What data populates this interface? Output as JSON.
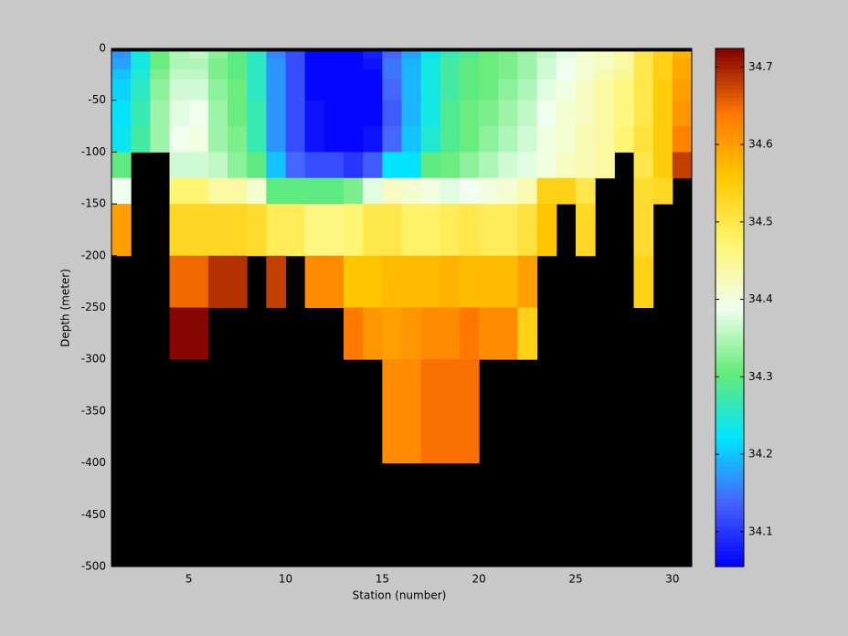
{
  "chart_data": {
    "type": "heatmap",
    "x_label": "Station (number)",
    "y_label": "Depth (meter)",
    "x_edges": [
      1,
      2,
      3,
      4,
      5,
      6,
      7,
      8,
      9,
      10,
      11,
      12,
      13,
      14,
      15,
      16,
      17,
      18,
      19,
      20,
      21,
      22,
      23,
      24,
      25,
      26,
      27,
      28,
      29,
      30,
      31
    ],
    "y_edges": [
      -3,
      -10,
      -20,
      -30,
      -50,
      -75,
      -100,
      -125,
      -150,
      -200,
      -250,
      -300,
      -400,
      -500
    ],
    "values": [
      [
        34.17,
        34.24,
        34.31,
        34.35,
        34.36,
        34.33,
        34.3,
        34.26,
        34.16,
        34.12,
        34.06,
        34.06,
        34.06,
        34.08,
        34.14,
        34.18,
        34.23,
        34.27,
        34.29,
        34.31,
        34.32,
        34.34,
        34.36,
        34.38,
        34.41,
        34.42,
        34.44,
        34.5,
        34.54,
        34.58
      ],
      [
        34.18,
        34.24,
        34.31,
        34.35,
        34.35,
        34.32,
        34.3,
        34.26,
        34.17,
        34.12,
        34.06,
        34.06,
        34.06,
        34.07,
        34.15,
        34.19,
        34.24,
        34.28,
        34.3,
        34.31,
        34.32,
        34.34,
        34.37,
        34.39,
        34.41,
        34.42,
        34.44,
        34.5,
        34.54,
        34.59
      ],
      [
        34.2,
        34.25,
        34.32,
        34.36,
        34.36,
        34.32,
        34.3,
        34.26,
        34.17,
        34.12,
        34.06,
        34.06,
        34.06,
        34.06,
        34.15,
        34.19,
        34.24,
        34.28,
        34.3,
        34.31,
        34.32,
        34.34,
        34.37,
        34.39,
        34.41,
        34.43,
        34.45,
        34.5,
        34.54,
        34.59
      ],
      [
        34.21,
        34.26,
        34.33,
        34.37,
        34.37,
        34.33,
        34.31,
        34.26,
        34.17,
        34.12,
        34.06,
        34.06,
        34.06,
        34.06,
        34.14,
        34.19,
        34.24,
        34.28,
        34.3,
        34.31,
        34.33,
        34.35,
        34.38,
        34.4,
        34.42,
        34.44,
        34.46,
        34.5,
        34.55,
        34.6
      ],
      [
        34.22,
        34.27,
        34.34,
        34.38,
        34.39,
        34.34,
        34.31,
        34.27,
        34.17,
        34.12,
        34.07,
        34.06,
        34.06,
        34.06,
        34.13,
        34.19,
        34.24,
        34.29,
        34.31,
        34.32,
        34.34,
        34.36,
        34.39,
        34.41,
        34.42,
        34.44,
        34.46,
        34.5,
        34.55,
        34.61
      ],
      [
        34.23,
        34.28,
        34.34,
        34.39,
        34.4,
        34.34,
        34.32,
        34.27,
        34.17,
        34.12,
        34.07,
        34.06,
        34.06,
        34.07,
        34.14,
        34.2,
        34.25,
        34.29,
        34.31,
        34.33,
        34.35,
        34.37,
        34.4,
        34.41,
        34.43,
        34.44,
        34.47,
        34.51,
        34.55,
        34.63
      ],
      [
        34.3,
        null,
        null,
        34.37,
        34.37,
        34.36,
        34.33,
        34.3,
        34.2,
        34.14,
        34.12,
        34.12,
        34.1,
        34.13,
        34.22,
        34.22,
        34.3,
        34.31,
        34.33,
        34.35,
        34.37,
        34.38,
        34.4,
        34.42,
        34.43,
        34.44,
        null,
        34.5,
        34.55,
        34.68
      ],
      [
        34.39,
        null,
        null,
        34.47,
        34.47,
        34.44,
        34.44,
        34.41,
        34.3,
        34.3,
        34.3,
        34.3,
        34.32,
        34.38,
        34.42,
        34.41,
        34.4,
        34.38,
        34.39,
        34.4,
        34.41,
        34.43,
        34.54,
        34.54,
        34.5,
        null,
        null,
        34.52,
        34.53,
        null
      ],
      [
        34.6,
        null,
        null,
        34.53,
        34.53,
        34.53,
        34.53,
        34.52,
        34.49,
        34.49,
        34.46,
        34.46,
        34.47,
        34.5,
        34.5,
        34.48,
        34.48,
        34.49,
        34.5,
        34.49,
        34.49,
        34.51,
        34.56,
        null,
        34.53,
        null,
        null,
        34.52,
        null,
        null
      ],
      [
        null,
        null,
        null,
        34.65,
        34.65,
        34.69,
        34.69,
        null,
        34.68,
        null,
        34.62,
        34.62,
        34.56,
        34.56,
        34.57,
        34.57,
        34.57,
        34.58,
        34.57,
        34.57,
        34.57,
        34.6,
        null,
        null,
        null,
        null,
        null,
        34.54,
        null,
        null
      ],
      [
        null,
        null,
        null,
        34.72,
        34.72,
        null,
        null,
        null,
        null,
        null,
        null,
        null,
        34.64,
        34.61,
        34.6,
        34.61,
        34.62,
        34.62,
        34.64,
        34.62,
        34.62,
        34.54,
        null,
        null,
        null,
        null,
        null,
        null,
        null,
        null
      ],
      [
        null,
        null,
        null,
        null,
        null,
        null,
        null,
        null,
        null,
        null,
        null,
        null,
        null,
        null,
        34.62,
        34.62,
        34.645,
        34.645,
        34.645,
        null,
        null,
        null,
        null,
        null,
        null,
        null,
        null,
        null,
        null,
        null
      ],
      [
        null,
        null,
        null,
        null,
        null,
        null,
        null,
        null,
        null,
        null,
        null,
        null,
        null,
        null,
        null,
        null,
        null,
        null,
        null,
        null,
        null,
        null,
        null,
        null,
        null,
        null,
        null,
        null,
        null,
        null
      ]
    ],
    "xlim": [
      1,
      31
    ],
    "ylim": [
      -500,
      0
    ],
    "xticks": [
      5,
      10,
      15,
      20,
      25,
      30
    ],
    "yticks": [
      0,
      -50,
      -100,
      -150,
      -200,
      -250,
      -300,
      -350,
      -400,
      -450,
      -500
    ],
    "missing_color": "#000000",
    "colormap": [
      "#0000ff",
      "#4664ff",
      "#00e6ff",
      "#64eb78",
      "#f0fff0",
      "#fff56e",
      "#ffc800",
      "#ff7800",
      "#800000"
    ],
    "clim": [
      34.055,
      34.724
    ],
    "cticks": [
      34.1,
      34.2,
      34.3,
      34.4,
      34.5,
      34.6,
      34.7
    ]
  }
}
